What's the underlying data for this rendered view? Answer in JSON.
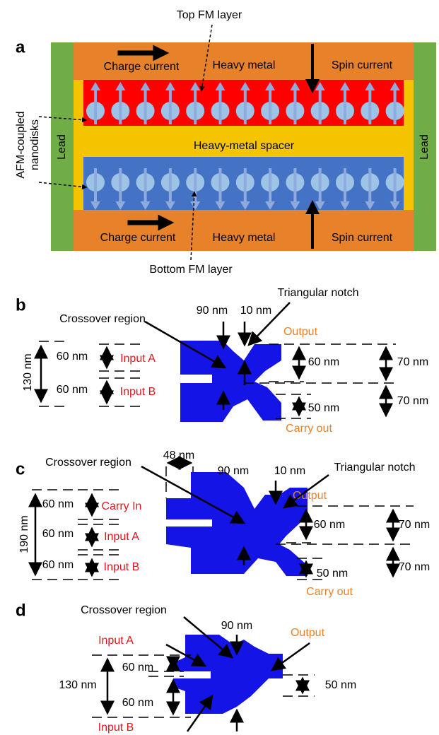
{
  "panel_a": {
    "label": "a",
    "top_fm_layer": "Top FM layer",
    "bottom_fm_layer": "Bottom FM layer",
    "lead_left": "Lead",
    "lead_right": "Lead",
    "afm_label": [
      "AFM-coupled",
      "nanodisks"
    ],
    "spacer": "Heavy-metal spacer",
    "top_charge": "Charge current",
    "top_heavy": "Heavy metal",
    "top_spin": "Spin current",
    "bottom_charge": "Charge current",
    "bottom_heavy": "Heavy metal",
    "bottom_spin": "Spin current"
  },
  "panel_b": {
    "label": "b",
    "notch": "Triangular notch",
    "width_90": "90 nm",
    "width_10": "10 nm",
    "crossover": "Crossover region",
    "output": "Output",
    "carry_out": "Carry out",
    "total": "130 nm",
    "in_a_w": "60 nm",
    "input_a": "Input A",
    "in_b_w": "60 nm",
    "input_b": "Input B",
    "out_w": "60 nm",
    "out_pitch": "70 nm",
    "carry_w": "50 nm",
    "carry_pitch": "70 nm"
  },
  "panel_c": {
    "label": "c",
    "gap": "48 nm",
    "crossover": "Crossover region",
    "width_90": "90 nm",
    "width_10": "10 nm",
    "notch": "Triangular notch",
    "output": "Output",
    "carry_out": "Carry out",
    "total": "190 nm",
    "carry_in_w": "60 nm",
    "carry_in": "Carry In",
    "in_a_w": "60 nm",
    "input_a": "Input A",
    "in_b_w": "60 nm",
    "input_b": "Input B",
    "out_w": "60 nm",
    "out_pitch": "70 nm",
    "carry_w": "50 nm",
    "carry_pitch": "70 nm"
  },
  "panel_d": {
    "label": "d",
    "crossover": "Crossover region",
    "width_90": "90 nm",
    "output": "Output",
    "input_a": "Input A",
    "input_b": "Input B",
    "total": "130 nm",
    "in_a_w": "60 nm",
    "in_b_w": "60 nm",
    "out_w": "50 nm"
  }
}
